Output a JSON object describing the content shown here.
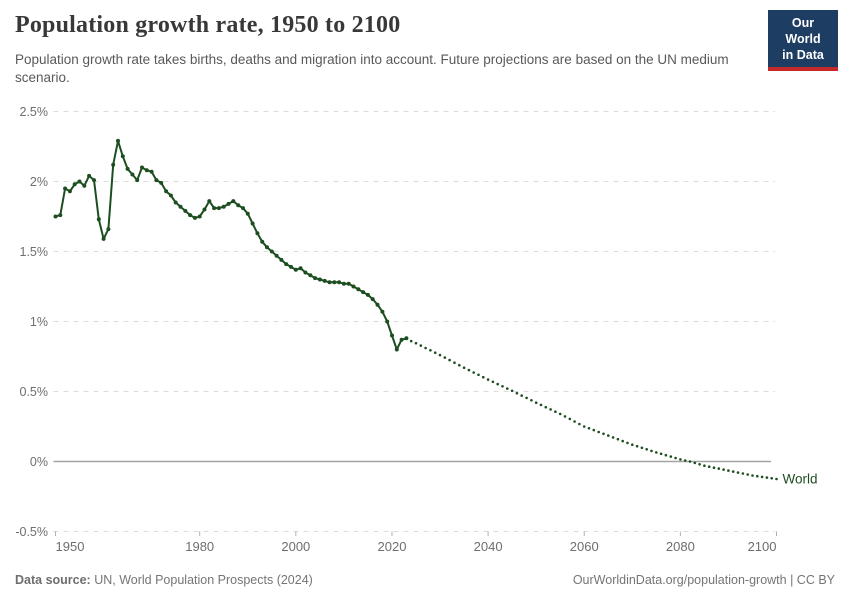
{
  "header": {
    "title": "Population growth rate, 1950 to 2100",
    "subtitle": "Population growth rate takes births, deaths and migration into account. Future projections are based on the UN medium scenario.",
    "logo": {
      "line1": "Our World",
      "line2": "in Data",
      "bg_color": "#1d3d63",
      "accent_color": "#c5292a"
    }
  },
  "footer": {
    "source_label": "Data source:",
    "source_text": " UN, World Population Prospects (2024)",
    "credit": "OurWorldinData.org/population-growth | CC BY"
  },
  "chart_data": {
    "type": "line",
    "title": "Population growth rate, 1950 to 2100",
    "xlabel": "",
    "ylabel": "",
    "unit": "%",
    "x_range": [
      1950,
      2105
    ],
    "ylim": [
      -0.5,
      2.5
    ],
    "x_ticks": [
      1950,
      1980,
      2000,
      2020,
      2040,
      2060,
      2080,
      2100
    ],
    "y_ticks": [
      2.5,
      2,
      1.5,
      1,
      0.5,
      0,
      -0.5
    ],
    "y_tick_labels": [
      "2.5%",
      "2%",
      "1.5%",
      "1%",
      "0.5%",
      "0%",
      "-0.5%"
    ],
    "grid": "horizontal-dashed",
    "grid_color": "#dcdcdc",
    "zero_line_color": "#a3a3a3",
    "axis_text_color": "#6e6e6e",
    "line_color": "#1d4e20",
    "end_label": "World",
    "legend_position": "end-of-line",
    "series": [
      {
        "name": "World (estimates)",
        "style": "solid-with-markers",
        "start_year": 1950,
        "values": [
          1.75,
          1.76,
          1.95,
          1.93,
          1.98,
          2.0,
          1.97,
          2.04,
          2.01,
          1.73,
          1.59,
          1.66,
          2.12,
          2.29,
          2.18,
          2.09,
          2.05,
          2.01,
          2.1,
          2.08,
          2.07,
          2.01,
          1.99,
          1.93,
          1.9,
          1.85,
          1.82,
          1.79,
          1.76,
          1.74,
          1.75,
          1.8,
          1.86,
          1.81,
          1.81,
          1.82,
          1.84,
          1.86,
          1.83,
          1.81,
          1.77,
          1.7,
          1.63,
          1.57,
          1.53,
          1.5,
          1.47,
          1.44,
          1.41,
          1.39,
          1.37,
          1.38,
          1.35,
          1.33,
          1.31,
          1.3,
          1.29,
          1.28,
          1.28,
          1.28,
          1.27,
          1.27,
          1.25,
          1.23,
          1.21,
          1.19,
          1.16,
          1.12,
          1.07,
          1.0,
          0.9,
          0.8,
          0.87,
          0.88
        ]
      },
      {
        "name": "World (UN medium projection)",
        "style": "dotted",
        "start_year": 2024,
        "values": [
          0.86,
          0.845,
          0.828,
          0.811,
          0.794,
          0.777,
          0.76,
          0.742,
          0.724,
          0.706,
          0.688,
          0.67,
          0.653,
          0.636,
          0.619,
          0.602,
          0.585,
          0.569,
          0.553,
          0.537,
          0.521,
          0.505,
          0.488,
          0.471,
          0.454,
          0.437,
          0.42,
          0.404,
          0.388,
          0.372,
          0.356,
          0.34,
          0.322,
          0.304,
          0.286,
          0.268,
          0.25,
          0.237,
          0.224,
          0.211,
          0.198,
          0.185,
          0.172,
          0.159,
          0.146,
          0.133,
          0.12,
          0.109,
          0.098,
          0.087,
          0.076,
          0.065,
          0.055,
          0.045,
          0.035,
          0.025,
          0.015,
          0.007,
          0,
          -0.01,
          -0.02,
          -0.03,
          -0.037,
          -0.044,
          -0.051,
          -0.058,
          -0.065,
          -0.072,
          -0.079,
          -0.086,
          -0.093,
          -0.1,
          -0.105,
          -0.11,
          -0.115,
          -0.12,
          -0.125
        ]
      }
    ]
  }
}
